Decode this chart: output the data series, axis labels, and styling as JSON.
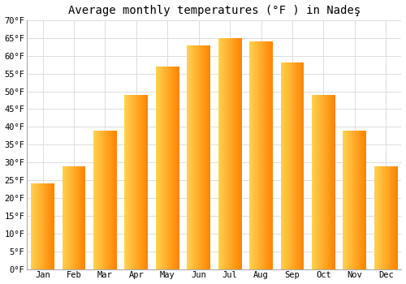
{
  "title": "Average monthly temperatures (°F ) in Nadeş",
  "months": [
    "Jan",
    "Feb",
    "Mar",
    "Apr",
    "May",
    "Jun",
    "Jul",
    "Aug",
    "Sep",
    "Oct",
    "Nov",
    "Dec"
  ],
  "values": [
    24,
    29,
    39,
    49,
    57,
    63,
    65,
    64,
    58,
    49,
    39,
    29
  ],
  "ylim": [
    0,
    70
  ],
  "yticks": [
    0,
    5,
    10,
    15,
    20,
    25,
    30,
    35,
    40,
    45,
    50,
    55,
    60,
    65,
    70
  ],
  "bar_color_left": "#FFD060",
  "bar_color_right": "#FFA010",
  "background_color": "#ffffff",
  "grid_color": "#dddddd",
  "title_fontsize": 10,
  "tick_fontsize": 7.5,
  "bar_width": 0.75
}
